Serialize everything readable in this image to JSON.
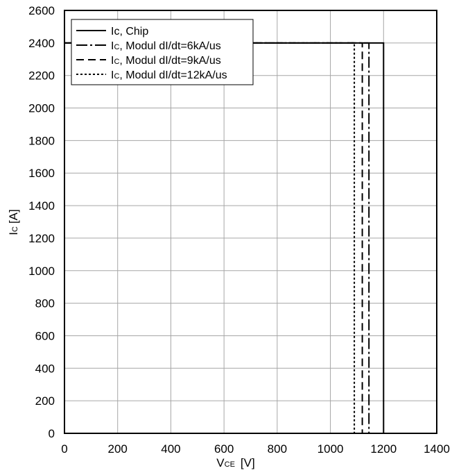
{
  "chart_data": {
    "type": "line",
    "xlabel": {
      "main": "V",
      "sub": "CE",
      "unit": "[V]"
    },
    "ylabel": {
      "main": "I",
      "sub": "C",
      "unit": "[A]"
    },
    "xlim": [
      0,
      1400
    ],
    "ylim": [
      0,
      2600
    ],
    "xticks": [
      0,
      200,
      400,
      600,
      800,
      1000,
      1200,
      1400
    ],
    "yticks": [
      0,
      200,
      400,
      600,
      800,
      1000,
      1200,
      1400,
      1600,
      1800,
      2000,
      2200,
      2400,
      2600
    ],
    "grid": true,
    "legend": {
      "placement": "top-left",
      "entries": [
        {
          "main": "Ic",
          "sub": "",
          "rest": ", Chip"
        },
        {
          "main": "I",
          "sub": "C",
          "rest": ", Modul dI/dt=6kA/us"
        },
        {
          "main": "I",
          "sub": "C",
          "rest": ", Modul dI/dt=9kA/us"
        },
        {
          "main": "I",
          "sub": "C",
          "rest": ", Modul dI/dt=12kA/us"
        }
      ]
    },
    "series": [
      {
        "x": [
          0,
          1200,
          1200
        ],
        "y": [
          2400,
          2400,
          0
        ],
        "dash": "solid"
      },
      {
        "x": [
          0,
          1145,
          1145
        ],
        "y": [
          2400,
          2400,
          0
        ],
        "dash": "dashdot"
      },
      {
        "x": [
          0,
          1120,
          1120
        ],
        "y": [
          2400,
          2400,
          0
        ],
        "dash": "dashed"
      },
      {
        "x": [
          0,
          1090,
          1090
        ],
        "y": [
          2400,
          2400,
          0
        ],
        "dash": "dotted"
      }
    ]
  }
}
